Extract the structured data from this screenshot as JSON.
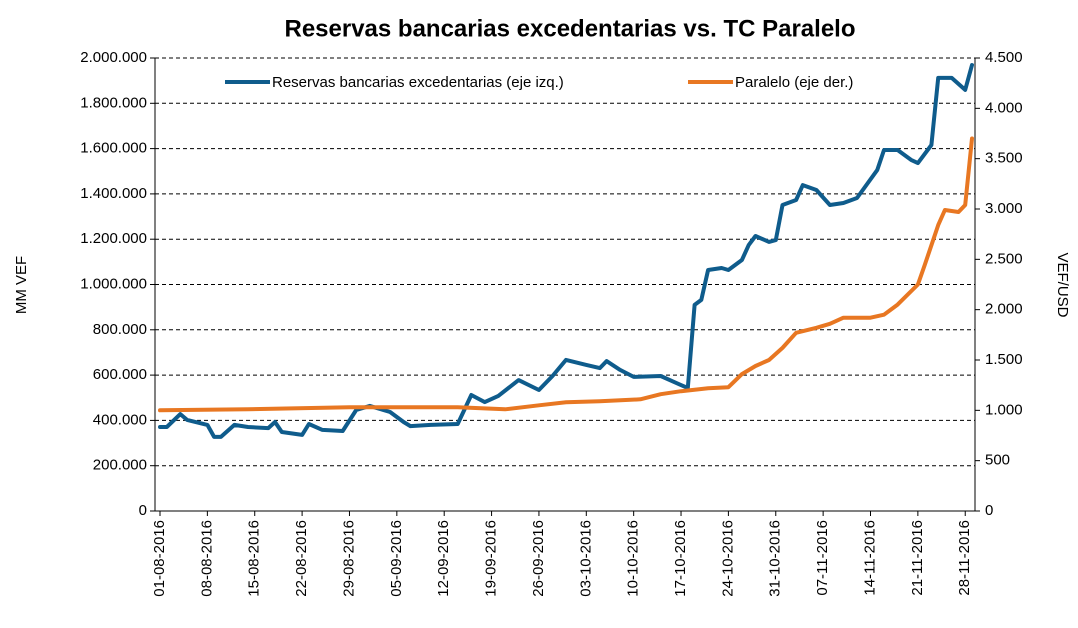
{
  "chart_data": {
    "type": "line",
    "title": "Reservas bancarias excedentarias vs. TC Paralelo",
    "ylabel": "MM VEF",
    "y2label": "VEF/USD",
    "xlim": [
      "01-08-2016",
      "29-11-2016"
    ],
    "xticks": [
      "01-08-2016",
      "08-08-2016",
      "15-08-2016",
      "22-08-2016",
      "29-08-2016",
      "05-09-2016",
      "12-09-2016",
      "19-09-2016",
      "26-09-2016",
      "03-10-2016",
      "10-10-2016",
      "17-10-2016",
      "24-10-2016",
      "31-10-2016",
      "07-11-2016",
      "14-11-2016",
      "21-11-2016",
      "28-11-2016"
    ],
    "ylim": [
      0,
      2000000
    ],
    "yticks": [
      0,
      {
        "value": 200000,
        "label": "200.000"
      },
      {
        "value": 400000,
        "label": "400.000"
      },
      {
        "value": 600000,
        "label": "600.000"
      },
      {
        "value": 800000,
        "label": "800.000"
      },
      {
        "value": 1000000,
        "label": "1.000.000"
      },
      {
        "value": 1200000,
        "label": "1.200.000"
      },
      {
        "value": 1400000,
        "label": "1.400.000"
      },
      {
        "value": 1600000,
        "label": "1.600.000"
      },
      {
        "value": 1800000,
        "label": "1.800.000"
      },
      {
        "value": 2000000,
        "label": "2.000.000"
      }
    ],
    "y2lim": [
      0,
      4500
    ],
    "y2ticks": [
      0,
      500,
      {
        "value": 1000,
        "label": "1.000"
      },
      {
        "value": 1500,
        "label": "1.500"
      },
      {
        "value": 2000,
        "label": "2.000"
      },
      {
        "value": 2500,
        "label": "2.500"
      },
      {
        "value": 3000,
        "label": "3.000"
      },
      {
        "value": 3500,
        "label": "3.500"
      },
      {
        "value": 4000,
        "label": "4.000"
      },
      {
        "value": 4500,
        "label": "4.500"
      }
    ],
    "grid": true,
    "legend": "top",
    "series": [
      {
        "name": "Reservas bancarias excedentarias (eje izq.)",
        "color": "#0f5c8c",
        "x": [
          "01-08-2016",
          "02-08-2016",
          "04-08-2016",
          "05-08-2016",
          "08-08-2016",
          "09-08-2016",
          "10-08-2016",
          "12-08-2016",
          "14-08-2016",
          "17-08-2016",
          "18-08-2016",
          "19-08-2016",
          "22-08-2016",
          "23-08-2016",
          "25-08-2016",
          "28-08-2016",
          "30-08-2016",
          "01-09-2016",
          "04-09-2016",
          "06-09-2016",
          "07-09-2016",
          "10-09-2016",
          "14-09-2016",
          "16-09-2016",
          "18-09-2016",
          "20-09-2016",
          "23-09-2016",
          "26-09-2016",
          "28-09-2016",
          "30-09-2016",
          "03-10-2016",
          "05-10-2016",
          "06-10-2016",
          "08-10-2016",
          "10-10-2016",
          "14-10-2016",
          "17-10-2016",
          "18-10-2016",
          "19-10-2016",
          "20-10-2016",
          "21-10-2016",
          "23-10-2016",
          "24-10-2016",
          "26-10-2016",
          "27-10-2016",
          "28-10-2016",
          "30-10-2016",
          "31-10-2016",
          "01-11-2016",
          "03-11-2016",
          "04-11-2016",
          "06-11-2016",
          "08-11-2016",
          "10-11-2016",
          "12-11-2016",
          "15-11-2016",
          "16-11-2016",
          "18-11-2016",
          "20-11-2016",
          "21-11-2016",
          "23-11-2016",
          "24-11-2016",
          "26-11-2016",
          "28-11-2016",
          "29-11-2016"
        ],
        "values": [
          371000,
          371000,
          428000,
          402000,
          380000,
          327000,
          327000,
          380000,
          371000,
          366000,
          393000,
          349000,
          336000,
          384000,
          358000,
          353000,
          446000,
          464000,
          437000,
          393000,
          375000,
          380000,
          384000,
          512000,
          481000,
          508000,
          578000,
          534000,
          596000,
          667000,
          645000,
          631000,
          662000,
          623000,
          592000,
          596000,
          556000,
          543000,
          910000,
          932000,
          1064000,
          1073000,
          1064000,
          1108000,
          1174000,
          1214000,
          1188000,
          1196000,
          1351000,
          1373000,
          1439000,
          1417000,
          1351000,
          1360000,
          1382000,
          1506000,
          1594000,
          1594000,
          1550000,
          1536000,
          1616000,
          1912000,
          1912000,
          1859000,
          1969000
        ]
      },
      {
        "name": "Paralelo (eje der.)",
        "color": "#e87722",
        "axis": "y2",
        "x": [
          "01-08-2016",
          "14-08-2016",
          "29-08-2016",
          "14-09-2016",
          "21-09-2016",
          "26-09-2016",
          "30-09-2016",
          "05-10-2016",
          "11-10-2016",
          "14-10-2016",
          "17-10-2016",
          "21-10-2016",
          "24-10-2016",
          "26-10-2016",
          "28-10-2016",
          "30-10-2016",
          "01-11-2016",
          "03-11-2016",
          "06-11-2016",
          "08-11-2016",
          "10-11-2016",
          "14-11-2016",
          "16-11-2016",
          "18-11-2016",
          "21-11-2016",
          "22-11-2016",
          "24-11-2016",
          "25-11-2016",
          "27-11-2016",
          "28-11-2016",
          "29-11-2016"
        ],
        "values": [
          1000,
          1010,
          1030,
          1030,
          1010,
          1050,
          1080,
          1090,
          1110,
          1160,
          1190,
          1220,
          1230,
          1360,
          1440,
          1500,
          1620,
          1770,
          1820,
          1860,
          1920,
          1920,
          1950,
          2050,
          2250,
          2440,
          2840,
          2990,
          2970,
          3040,
          3700
        ]
      }
    ]
  }
}
